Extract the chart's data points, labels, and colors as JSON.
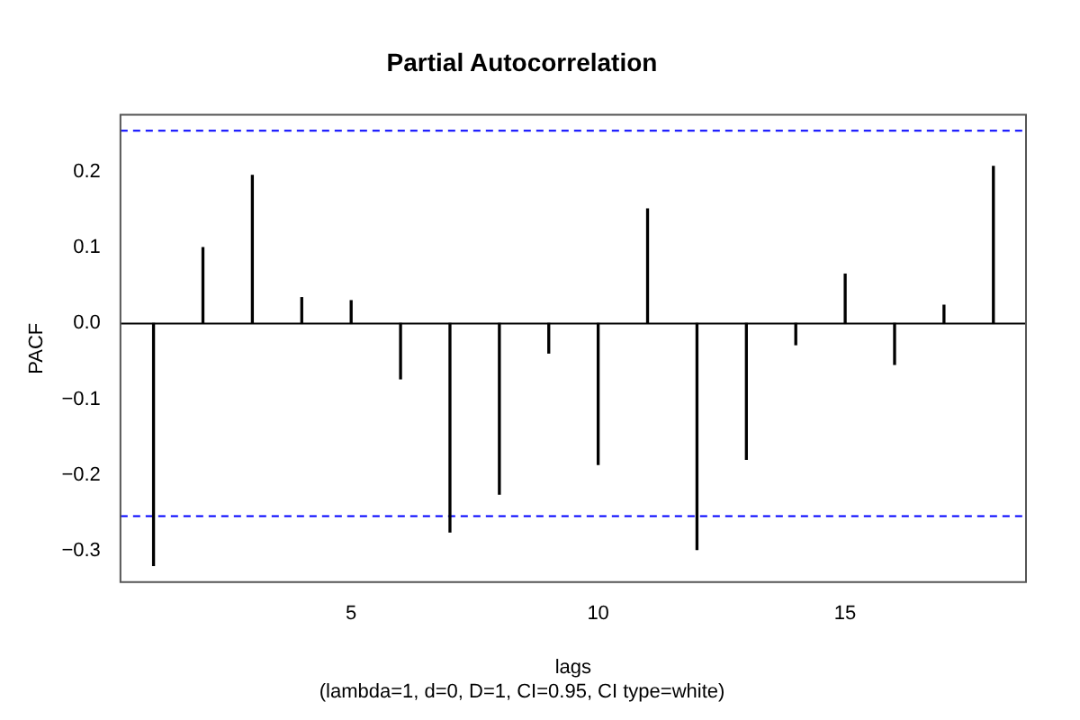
{
  "chart_data": {
    "type": "bar",
    "title": "Partial Autocorrelation",
    "xlabel": "lags",
    "ylabel": "PACF",
    "annotations": [
      "(lambda=1, d=0, D=1, CI=0.95, CI type=white)"
    ],
    "x": [
      1,
      2,
      3,
      4,
      5,
      6,
      7,
      8,
      9,
      10,
      11,
      12,
      13,
      14,
      15,
      16,
      17,
      18
    ],
    "values": [
      -0.319,
      0.1,
      0.195,
      0.034,
      0.03,
      -0.073,
      -0.275,
      -0.225,
      -0.039,
      -0.186,
      0.151,
      -0.298,
      -0.179,
      -0.028,
      0.065,
      -0.054,
      0.024,
      0.207
    ],
    "color": "#000000",
    "xlim": [
      0.33,
      18.66
    ],
    "xticks": [
      5,
      10,
      15
    ],
    "ylim": [
      -0.341,
      0.275
    ],
    "yticks": [
      {
        "value": -0.3,
        "label": "−0.3"
      },
      {
        "value": -0.2,
        "label": "−0.2"
      },
      {
        "value": -0.1,
        "label": "−0.1"
      },
      {
        "value": 0,
        "label": "0.0"
      },
      {
        "value": 0.1,
        "label": "0.1"
      },
      {
        "value": 0.2,
        "label": "0.2"
      }
    ],
    "ref_lines": [
      {
        "axis": "y",
        "value": 0,
        "color": "#000000",
        "line_style": "solid"
      },
      {
        "axis": "y",
        "value": 0.254,
        "color": "#0000ff",
        "line_style": "dashed"
      },
      {
        "axis": "y",
        "value": -0.254,
        "color": "#0000ff",
        "line_style": "dashed"
      }
    ],
    "grid": false,
    "legend": false
  }
}
